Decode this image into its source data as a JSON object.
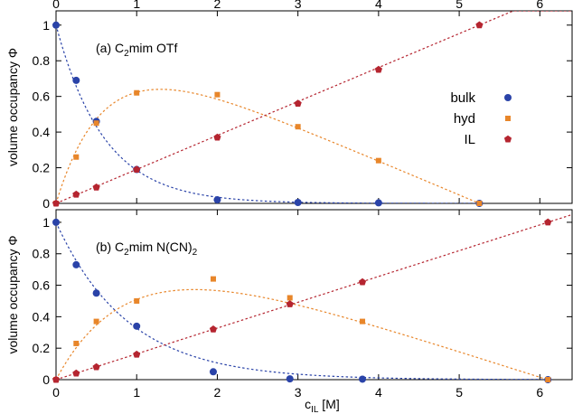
{
  "chart_data": [
    {
      "type": "scatter",
      "panel_label": "(a) C",
      "panel_sub": "2",
      "panel_label_rest": "mim OTf",
      "ylabel": "volume occupancy Φ",
      "xlim": [
        0,
        6.4
      ],
      "ylim": [
        0,
        1.08
      ],
      "x_ticks": [
        0,
        1,
        2,
        3,
        4,
        5,
        6
      ],
      "x_ticks_top": [
        0,
        1,
        2,
        3,
        4,
        5,
        6
      ],
      "y_ticks": [
        0,
        0.2,
        0.4,
        0.6,
        0.8,
        1
      ],
      "y_tick_labels": [
        "0",
        "0.2",
        "0.4",
        "0.6",
        "0.8",
        "1"
      ],
      "legend_position": "right",
      "series": [
        {
          "name": "bulk",
          "marker": "circle",
          "color": "#2a43a8",
          "x": [
            0,
            0.25,
            0.5,
            1.0,
            2.0,
            3.0,
            4.0,
            5.25
          ],
          "y": [
            1.0,
            0.69,
            0.46,
            0.19,
            0.02,
            0.005,
            0.003,
            0.0
          ]
        },
        {
          "name": "hyd",
          "marker": "square",
          "color": "#e8862a",
          "x": [
            0,
            0.25,
            0.5,
            1.0,
            2.0,
            3.0,
            4.0,
            5.25
          ],
          "y": [
            0.0,
            0.26,
            0.45,
            0.62,
            0.61,
            0.43,
            0.24,
            0.0
          ]
        },
        {
          "name": "IL",
          "marker": "pentagon",
          "color": "#b52530",
          "x": [
            0,
            0.25,
            0.5,
            1.0,
            2.0,
            3.0,
            4.0,
            5.25
          ],
          "y": [
            0.0,
            0.05,
            0.09,
            0.19,
            0.37,
            0.56,
            0.75,
            1.0
          ]
        }
      ]
    },
    {
      "type": "scatter",
      "panel_label": "(b) C",
      "panel_sub": "2",
      "panel_label_rest": "mim N(CN)",
      "panel_sub2": "2",
      "ylabel": "volume occupancy Φ",
      "xlabel": "c",
      "xlabel_sub": "IL",
      "xlabel_rest": " [M]",
      "xlim": [
        0,
        6.4
      ],
      "ylim": [
        0,
        1.08
      ],
      "x_ticks": [
        0,
        1,
        2,
        3,
        4,
        5,
        6
      ],
      "y_ticks": [
        0,
        0.2,
        0.4,
        0.6,
        0.8,
        1
      ],
      "y_tick_labels": [
        "0",
        "0.2",
        "0.4",
        "0.6",
        "0.8",
        "1"
      ],
      "series": [
        {
          "name": "bulk",
          "marker": "circle",
          "color": "#2a43a8",
          "x": [
            0,
            0.25,
            0.5,
            1.0,
            1.95,
            2.9,
            3.8,
            6.1
          ],
          "y": [
            1.0,
            0.73,
            0.55,
            0.34,
            0.05,
            0.005,
            0.003,
            0.0
          ]
        },
        {
          "name": "hyd",
          "marker": "square",
          "color": "#e8862a",
          "x": [
            0,
            0.25,
            0.5,
            1.0,
            1.95,
            2.9,
            3.8,
            6.1
          ],
          "y": [
            0.0,
            0.23,
            0.37,
            0.5,
            0.64,
            0.52,
            0.37,
            0.0
          ]
        },
        {
          "name": "IL",
          "marker": "pentagon",
          "color": "#b52530",
          "x": [
            0,
            0.25,
            0.5,
            1.0,
            1.95,
            2.9,
            3.8,
            6.1
          ],
          "y": [
            0.0,
            0.04,
            0.08,
            0.16,
            0.32,
            0.48,
            0.62,
            1.0
          ]
        }
      ]
    }
  ]
}
